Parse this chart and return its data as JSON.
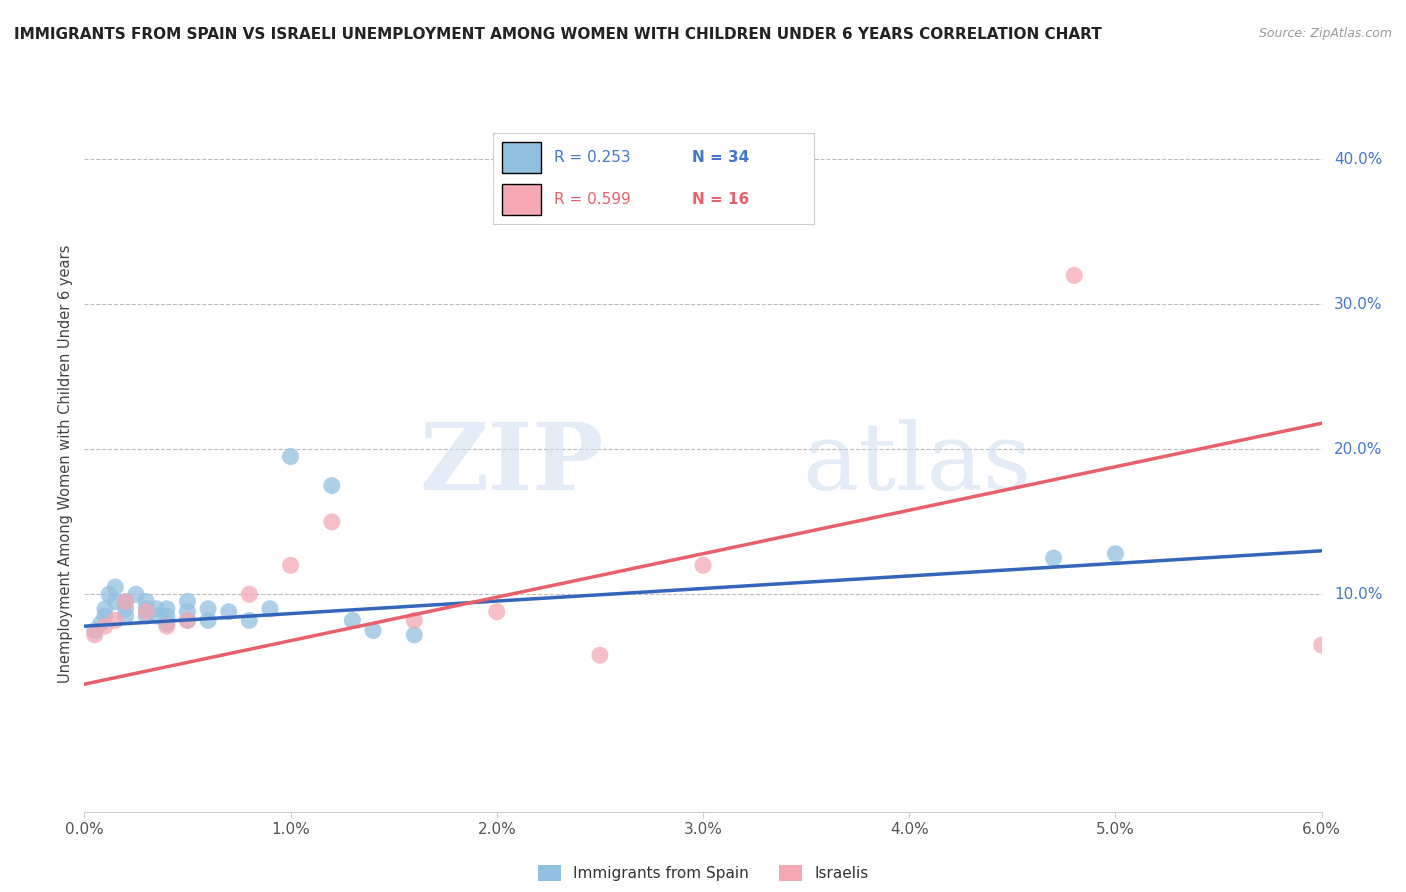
{
  "title": "IMMIGRANTS FROM SPAIN VS ISRAELI UNEMPLOYMENT AMONG WOMEN WITH CHILDREN UNDER 6 YEARS CORRELATION CHART",
  "source": "Source: ZipAtlas.com",
  "ylabel": "Unemployment Among Women with Children Under 6 years",
  "xlim": [
    0.0,
    0.06
  ],
  "ylim": [
    -0.05,
    0.43
  ],
  "xticks": [
    0.0,
    0.01,
    0.02,
    0.03,
    0.04,
    0.05,
    0.06
  ],
  "xticklabels": [
    "0.0%",
    "1.0%",
    "2.0%",
    "3.0%",
    "4.0%",
    "5.0%",
    "6.0%"
  ],
  "yticks_right": [
    0.1,
    0.2,
    0.3,
    0.4
  ],
  "yticks_right_labels": [
    "10.0%",
    "20.0%",
    "30.0%",
    "40.0%"
  ],
  "legend_r1": "R = 0.253",
  "legend_n1": "N = 34",
  "legend_r2": "R = 0.599",
  "legend_n2": "N = 16",
  "legend_label1": "Immigrants from Spain",
  "legend_label2": "Israelis",
  "blue_color": "#92C0E0",
  "pink_color": "#F4A8B4",
  "blue_line_color": "#3366BB",
  "pink_line_color": "#E8606A",
  "watermark_zip": "ZIP",
  "watermark_atlas": "atlas",
  "blue_scatter_x": [
    0.0005,
    0.0008,
    0.001,
    0.001,
    0.0012,
    0.0015,
    0.0015,
    0.002,
    0.002,
    0.002,
    0.0025,
    0.003,
    0.003,
    0.003,
    0.0035,
    0.0035,
    0.004,
    0.004,
    0.004,
    0.005,
    0.005,
    0.005,
    0.006,
    0.006,
    0.007,
    0.008,
    0.009,
    0.01,
    0.012,
    0.013,
    0.014,
    0.016,
    0.047,
    0.05
  ],
  "blue_scatter_y": [
    0.075,
    0.08,
    0.085,
    0.09,
    0.1,
    0.095,
    0.105,
    0.085,
    0.09,
    0.095,
    0.1,
    0.085,
    0.09,
    0.095,
    0.085,
    0.09,
    0.08,
    0.085,
    0.09,
    0.082,
    0.088,
    0.095,
    0.082,
    0.09,
    0.088,
    0.082,
    0.09,
    0.195,
    0.175,
    0.082,
    0.075,
    0.072,
    0.125,
    0.128
  ],
  "pink_scatter_x": [
    0.0005,
    0.001,
    0.0015,
    0.002,
    0.003,
    0.004,
    0.005,
    0.008,
    0.01,
    0.012,
    0.016,
    0.02,
    0.025,
    0.03,
    0.048,
    0.06
  ],
  "pink_scatter_y": [
    0.072,
    0.078,
    0.082,
    0.095,
    0.088,
    0.078,
    0.082,
    0.1,
    0.12,
    0.15,
    0.082,
    0.088,
    0.058,
    0.12,
    0.32,
    0.065
  ],
  "blue_line_x": [
    0.0,
    0.06
  ],
  "blue_line_y": [
    0.078,
    0.13
  ],
  "pink_line_x": [
    0.0,
    0.06
  ],
  "pink_line_y": [
    0.038,
    0.218
  ]
}
